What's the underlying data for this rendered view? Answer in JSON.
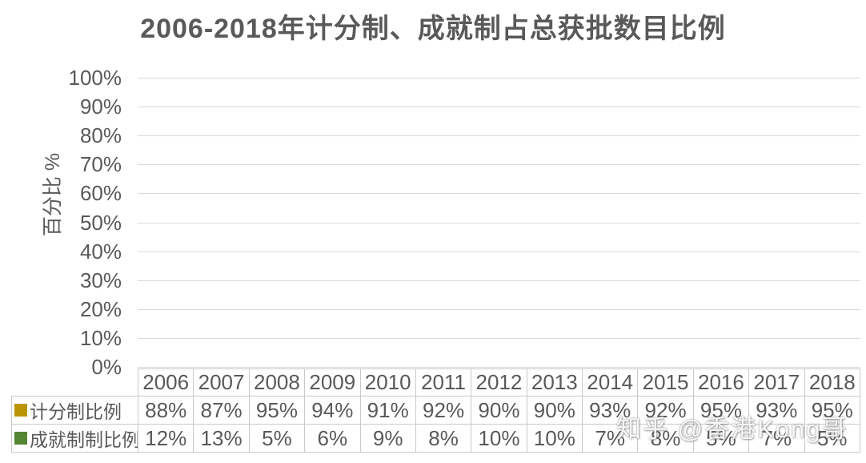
{
  "chart_data": {
    "type": "bar",
    "title": "2006-2018年计分制、成就制占总获批数目比例",
    "ylabel": "百分比 %",
    "xlabel": "",
    "categories": [
      "2006",
      "2007",
      "2008",
      "2009",
      "2010",
      "2011",
      "2012",
      "2013",
      "2014",
      "2015",
      "2016",
      "2017",
      "2018"
    ],
    "series": [
      {
        "name": "计分制比例",
        "color": "#BB9506",
        "values": [
          88,
          87,
          95,
          94,
          91,
          92,
          90,
          90,
          93,
          92,
          95,
          93,
          95
        ]
      },
      {
        "name": "成就制制比例",
        "color": "#568534",
        "values": [
          12,
          13,
          5,
          6,
          9,
          8,
          10,
          10,
          7,
          8,
          5,
          7,
          5
        ]
      }
    ],
    "ylim": [
      0,
      100
    ],
    "ytick_step": 10,
    "ytick_format": "percent",
    "value_format": "percent",
    "grid": true,
    "legend_position": "data-table-left",
    "data_table_shown": true
  },
  "watermark": "知乎 @香港Kong哥",
  "colors": {
    "text": "#595959",
    "gridline": "#D9D9D9",
    "table_border": "#C9C9C9",
    "background": "#FFFFFF"
  }
}
